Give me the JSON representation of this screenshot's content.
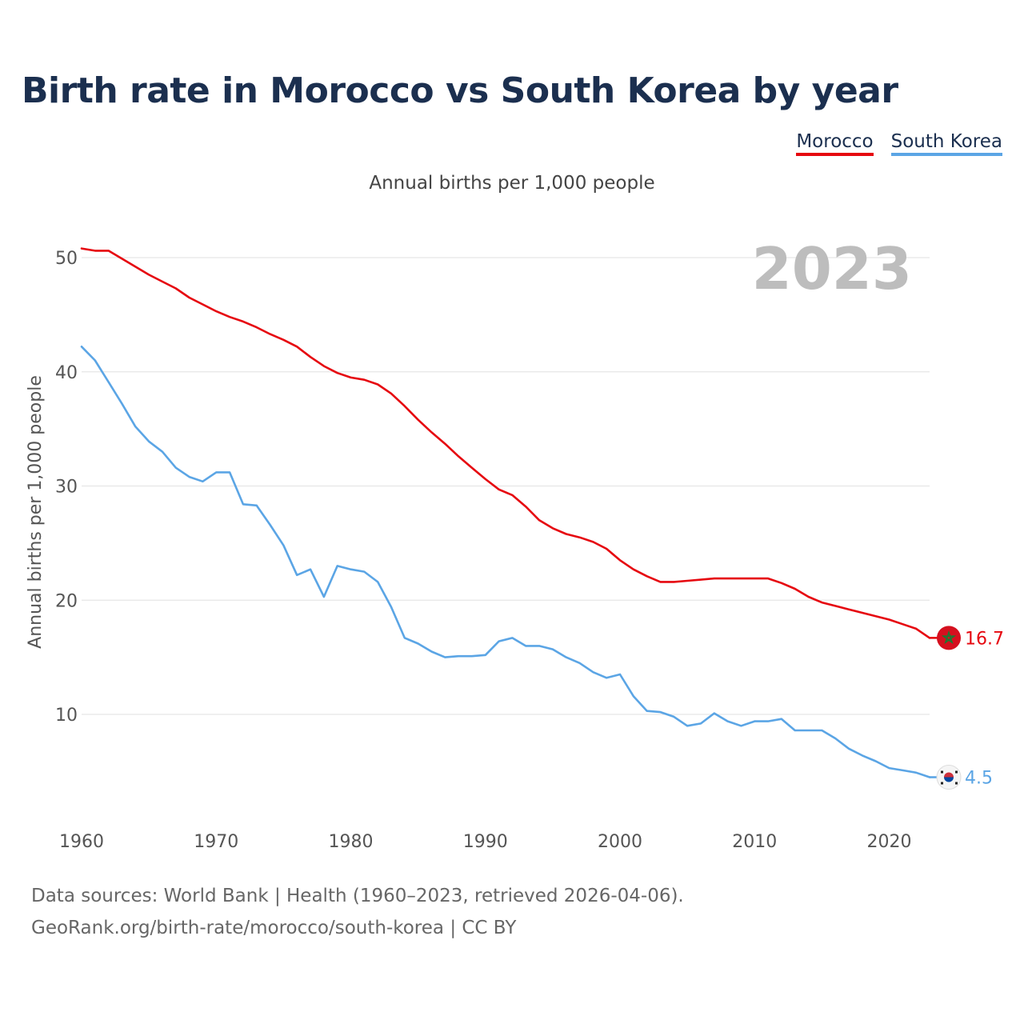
{
  "title": "Birth rate in Morocco vs South Korea by year",
  "subtitle": "Annual births per 1,000 people",
  "legend": [
    {
      "label": "Morocco",
      "color": "#e6070f"
    },
    {
      "label": "South Korea",
      "color": "#5ba5e5"
    }
  ],
  "year_watermark": "2023",
  "footer": {
    "sources": "Data sources: World Bank | Health (1960–2023, retrieved 2026-04-06).",
    "link": "GeoRank.org/birth-rate/morocco/south-korea | CC BY"
  },
  "chart_data": {
    "type": "line",
    "title": "Birth rate in Morocco vs South Korea by year",
    "xlabel": "",
    "ylabel": "Annual births per 1,000 people",
    "xlim": [
      1960,
      2023
    ],
    "ylim": [
      3,
      52
    ],
    "grid": true,
    "legend_position": "top-right",
    "x_ticks": [
      1960,
      1970,
      1980,
      1990,
      2000,
      2010,
      2020
    ],
    "y_ticks": [
      10,
      20,
      30,
      40,
      50
    ],
    "x": [
      1960,
      1961,
      1962,
      1963,
      1964,
      1965,
      1966,
      1967,
      1968,
      1969,
      1970,
      1971,
      1972,
      1973,
      1974,
      1975,
      1976,
      1977,
      1978,
      1979,
      1980,
      1981,
      1982,
      1983,
      1984,
      1985,
      1986,
      1987,
      1988,
      1989,
      1990,
      1991,
      1992,
      1993,
      1994,
      1995,
      1996,
      1997,
      1998,
      1999,
      2000,
      2001,
      2002,
      2003,
      2004,
      2005,
      2006,
      2007,
      2008,
      2009,
      2010,
      2011,
      2012,
      2013,
      2014,
      2015,
      2016,
      2017,
      2018,
      2019,
      2020,
      2021,
      2022,
      2023
    ],
    "series": [
      {
        "name": "Morocco",
        "color": "#e6070f",
        "end_label": "16.7",
        "values": [
          50.8,
          50.6,
          50.6,
          49.9,
          49.2,
          48.5,
          47.9,
          47.3,
          46.5,
          45.9,
          45.3,
          44.8,
          44.4,
          43.9,
          43.3,
          42.8,
          42.2,
          41.3,
          40.5,
          39.9,
          39.5,
          39.3,
          38.9,
          38.1,
          37.0,
          35.8,
          34.7,
          33.7,
          32.6,
          31.6,
          30.6,
          29.7,
          29.2,
          28.2,
          27.0,
          26.3,
          25.8,
          25.5,
          25.1,
          24.5,
          23.5,
          22.7,
          22.1,
          21.6,
          21.6,
          21.7,
          21.8,
          21.9,
          21.9,
          21.9,
          21.9,
          21.9,
          21.5,
          21.0,
          20.3,
          19.8,
          19.5,
          19.2,
          18.9,
          18.6,
          18.3,
          17.9,
          17.5,
          16.7
        ]
      },
      {
        "name": "South Korea",
        "color": "#5ba5e5",
        "end_label": "4.5",
        "values": [
          42.2,
          41.0,
          39.1,
          37.2,
          35.2,
          33.9,
          33.0,
          31.6,
          30.8,
          30.4,
          31.2,
          31.2,
          28.4,
          28.3,
          26.6,
          24.8,
          22.2,
          22.7,
          20.3,
          23.0,
          22.7,
          22.5,
          21.6,
          19.4,
          16.7,
          16.2,
          15.5,
          15.0,
          15.1,
          15.1,
          15.2,
          16.4,
          16.7,
          16.0,
          16.0,
          15.7,
          15.0,
          14.5,
          13.7,
          13.2,
          13.5,
          11.6,
          10.3,
          10.2,
          9.8,
          9.0,
          9.2,
          10.1,
          9.4,
          9.0,
          9.4,
          9.4,
          9.6,
          8.6,
          8.6,
          8.6,
          7.9,
          7.0,
          6.4,
          5.9,
          5.3,
          5.1,
          4.9,
          4.5
        ]
      }
    ]
  }
}
